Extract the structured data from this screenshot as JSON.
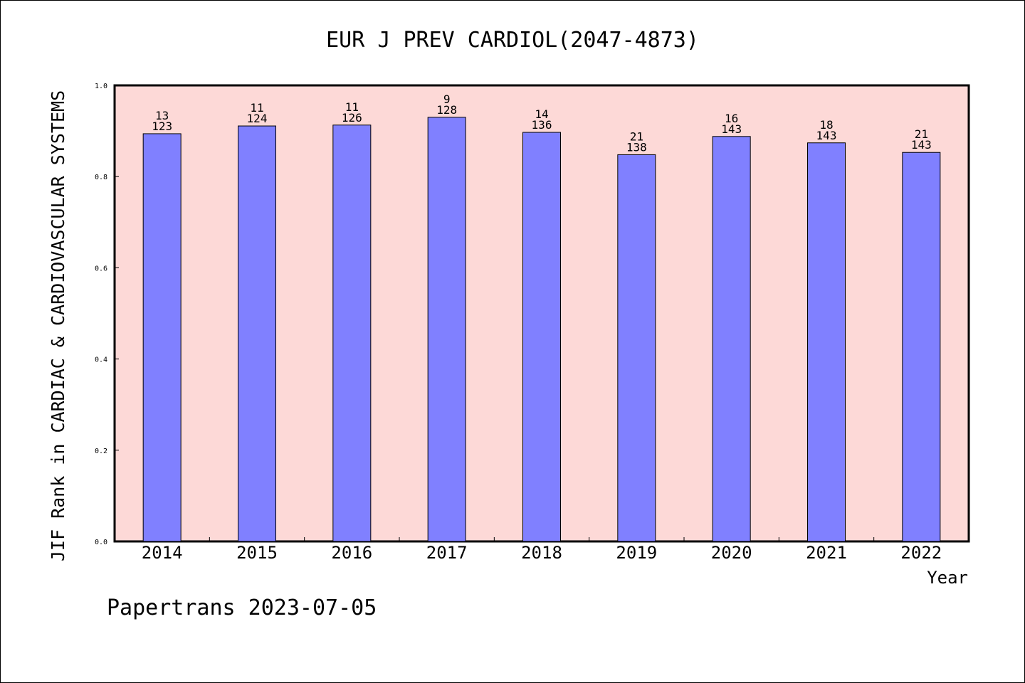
{
  "chart_data": {
    "type": "bar",
    "title": "EUR J PREV CARDIOL(2047-4873)",
    "xlabel": "Year",
    "ylabel": "JIF Rank in CARDIAC & CARDIOVASCULAR SYSTEMS",
    "ylim": [
      0,
      1.0
    ],
    "yticks": [
      "0.0",
      "0.2",
      "0.4",
      "0.6",
      "0.8",
      "1.0"
    ],
    "categories": [
      "2014",
      "2015",
      "2016",
      "2017",
      "2018",
      "2019",
      "2020",
      "2021",
      "2022"
    ],
    "values": [
      0.894,
      0.911,
      0.913,
      0.93,
      0.897,
      0.848,
      0.888,
      0.874,
      0.853
    ],
    "rank": [
      "13",
      "11",
      "11",
      "9",
      "14",
      "21",
      "16",
      "18",
      "21"
    ],
    "total": [
      "123",
      "124",
      "126",
      "128",
      "136",
      "138",
      "143",
      "143",
      "143"
    ],
    "grid": false,
    "colors": {
      "plot_bg": "#fdd9d7",
      "bar": "#8080ff",
      "bar_edge": "#000000"
    }
  },
  "footer": "Papertrans 2023-07-05"
}
